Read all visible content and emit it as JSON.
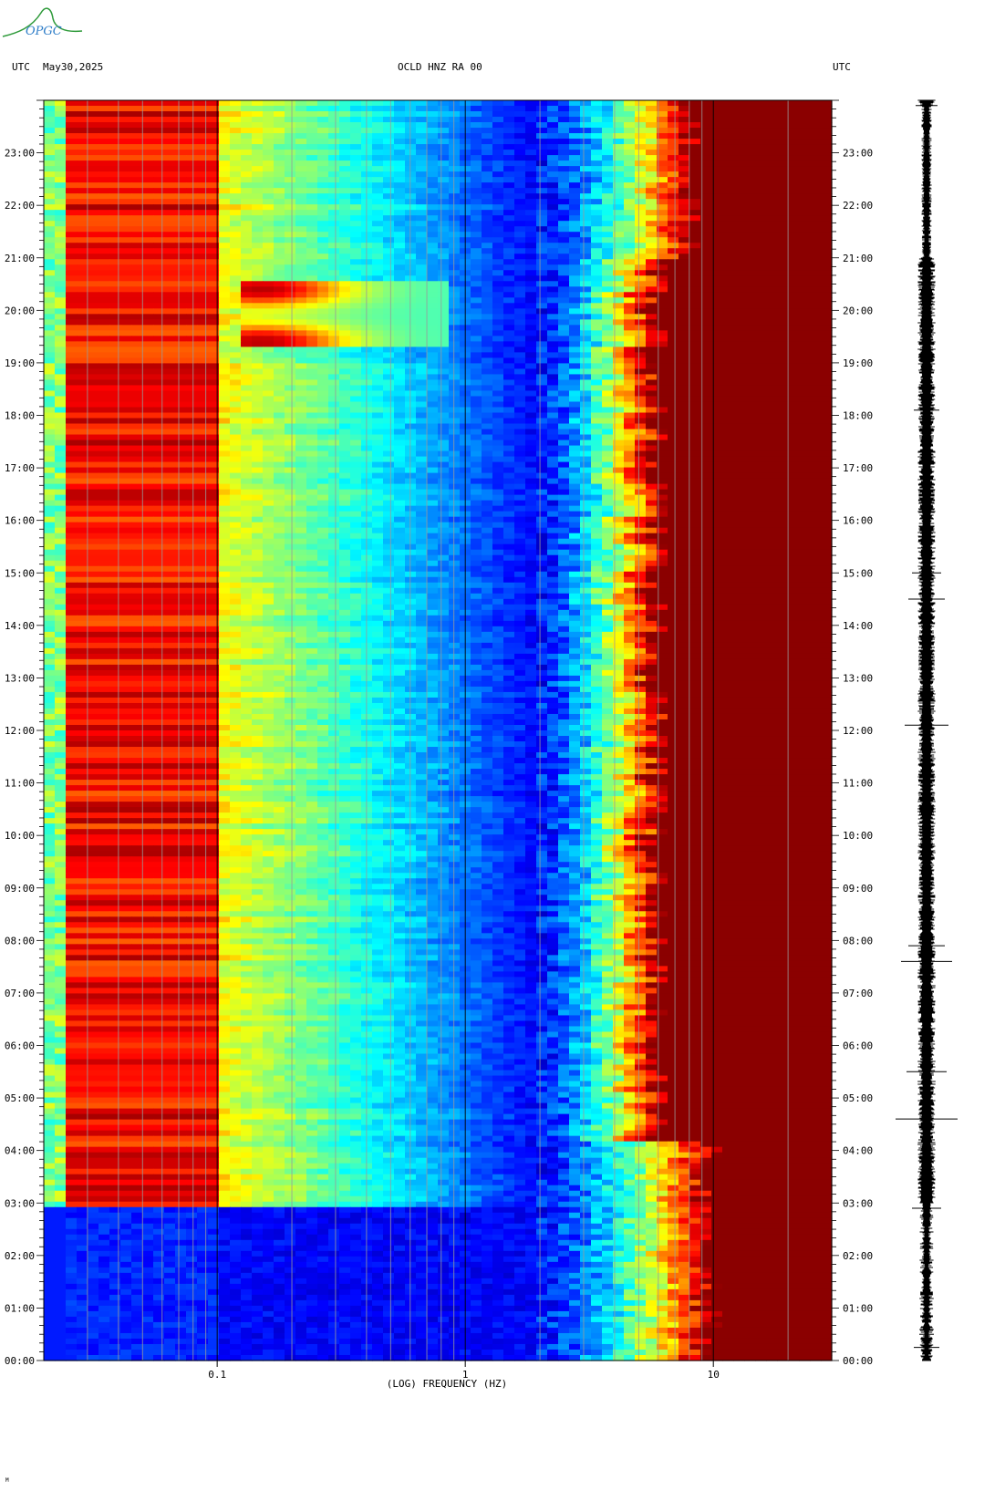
{
  "header": {
    "left_tz": "UTC",
    "date": "May30,2025",
    "station": "OCLD HNZ RA 00",
    "right_tz": "UTC"
  },
  "logo": {
    "text": "OPGC",
    "color": "#2e9a3a"
  },
  "chart_data": {
    "type": "heatmap",
    "title": "OCLD HNZ RA 00",
    "xlabel": "(LOG) FREQUENCY (HZ)",
    "x_scale": "log",
    "xlim_hz": [
      0.02,
      30
    ],
    "x_tick_labels": [
      "0.1",
      "1",
      "10"
    ],
    "x_tick_values": [
      0.1,
      1,
      10
    ],
    "y_tick_labels": [
      "23:00",
      "22:00",
      "21:00",
      "20:00",
      "19:00",
      "18:00",
      "17:00",
      "16:00",
      "15:00",
      "14:00",
      "13:00",
      "12:00",
      "11:00",
      "10:00",
      "09:00",
      "08:00",
      "07:00",
      "06:00",
      "05:00",
      "04:00",
      "03:00",
      "02:00",
      "01:00",
      "00:00"
    ],
    "ylim_utc": [
      "00:00",
      "24:00"
    ],
    "colormap": [
      "#00008b",
      "#0000ff",
      "#0080ff",
      "#00ffff",
      "#80ff80",
      "#ffff00",
      "#ff8000",
      "#ff0000",
      "#8b0000"
    ],
    "features": {
      "microseism_band_hz": [
        0.025,
        0.1
      ],
      "microseism_active_utc_hours": [
        2.9,
        24
      ],
      "high_freq_saturation_from_hz": 6,
      "event_utc_hours": [
        19.3,
        20.6
      ],
      "event_peak_hz": 0.15
    },
    "seismogram": {
      "label": "waveform",
      "trace_color": "#000000"
    }
  },
  "footer": {
    "mark": "M"
  }
}
